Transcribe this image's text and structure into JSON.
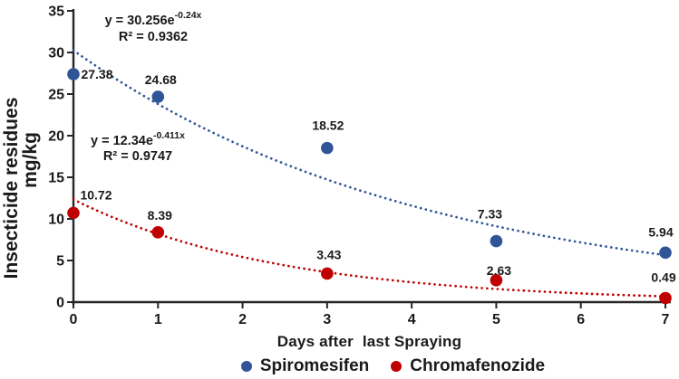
{
  "chart_data": {
    "type": "scatter",
    "title": "",
    "xlabel": "Days after  last Spraying",
    "ylabel_lines": [
      "Insecticide residues",
      "mg/kg"
    ],
    "xlim": [
      0,
      7
    ],
    "ylim": [
      0,
      35
    ],
    "xticks": [
      "0",
      "1",
      "2",
      "3",
      "4",
      "5",
      "6",
      "7"
    ],
    "yticks": [
      "0",
      "5",
      "10",
      "15",
      "20",
      "25",
      "30",
      "35"
    ],
    "grid": false,
    "legend_position": "bottom",
    "x_values": [
      0,
      1,
      3,
      5,
      7
    ],
    "series": [
      {
        "name": "Spiromesifen",
        "color": "#2F5597",
        "values": [
          27.38,
          24.68,
          18.52,
          7.33,
          5.94
        ],
        "point_labels": [
          "27.38",
          "24.68",
          "18.52",
          "7.33",
          "5.94"
        ],
        "trendline": {
          "type": "exponential",
          "a": 30.256,
          "k": -0.24,
          "style": "dotted"
        },
        "equation": {
          "base": "y = 30.256e",
          "exponent": "-0.24x",
          "r2": "R² = 0.9362"
        }
      },
      {
        "name": "Chromafenozide",
        "color": "#C00000",
        "values": [
          10.72,
          8.39,
          3.43,
          2.63,
          0.49
        ],
        "point_labels": [
          "10.72",
          "8.39",
          "3.43",
          "2.63",
          "0.49"
        ],
        "trendline": {
          "type": "exponential",
          "a": 12.34,
          "k": -0.411,
          "style": "dotted"
        },
        "equation": {
          "base": "y = 12.34e",
          "exponent": "-0.411x",
          "r2": "R² = 0.9747"
        }
      }
    ],
    "axis_color": "#262626",
    "text_color": "#1a1a1a"
  }
}
